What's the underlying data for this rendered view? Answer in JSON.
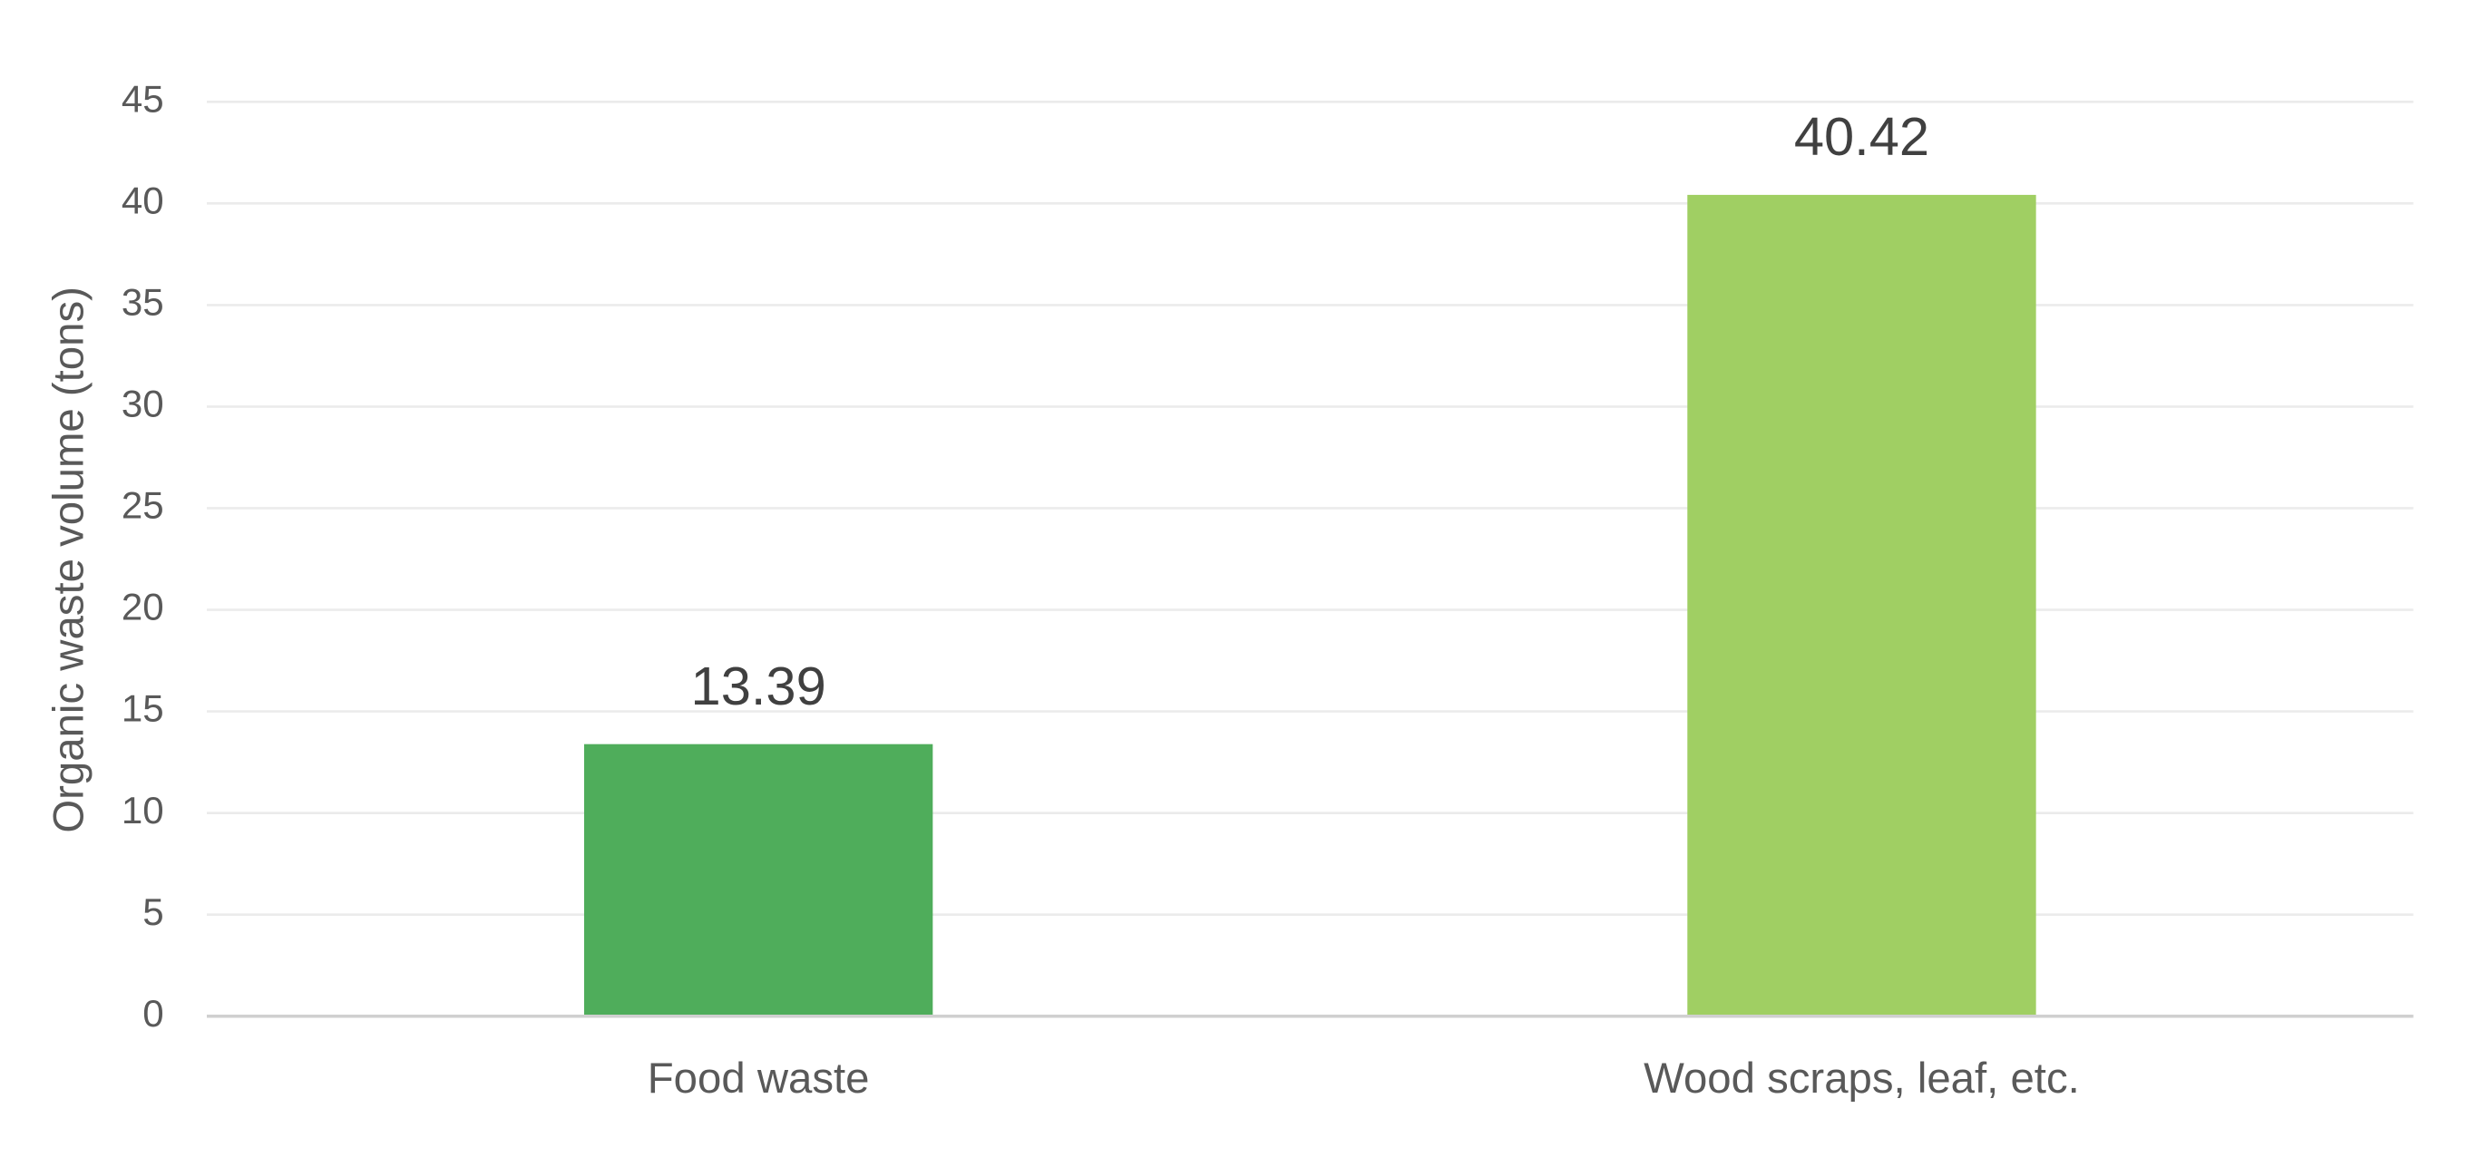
{
  "chart_data": {
    "type": "bar",
    "y_label": "Organic waste volume (tons)",
    "categories": [
      "Food waste",
      "Wood scraps, leaf, etc."
    ],
    "values": [
      13.39,
      40.42
    ],
    "colors": [
      "#4fad5b",
      "#a0cf63"
    ],
    "ylim": [
      0,
      45
    ],
    "yticks": [
      0,
      5,
      10,
      15,
      20,
      25,
      30,
      35,
      40,
      45
    ],
    "grid": true
  }
}
